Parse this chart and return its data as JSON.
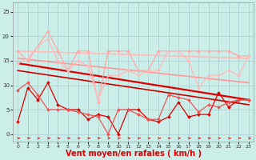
{
  "title": "",
  "xlabel": "Vent moyen/en rafales ( km/h )",
  "xlim": [
    -0.5,
    23.5
  ],
  "ylim": [
    -1.5,
    27
  ],
  "yticks": [
    0,
    5,
    10,
    15,
    20,
    25
  ],
  "xticks": [
    0,
    1,
    2,
    3,
    4,
    5,
    6,
    7,
    8,
    9,
    10,
    11,
    12,
    13,
    14,
    15,
    16,
    17,
    18,
    19,
    20,
    21,
    22,
    23
  ],
  "bg_color": "#cceee8",
  "grid_color": "#aacccc",
  "series": [
    {
      "name": "light_pink_jagged1",
      "color": "#ffaaaa",
      "lw": 0.9,
      "marker": "D",
      "ms": 2.0,
      "x": [
        0,
        1,
        2,
        3,
        4,
        5,
        6,
        7,
        8,
        9,
        10,
        11,
        12,
        13,
        14,
        15,
        16,
        17,
        18,
        19,
        20,
        21,
        22,
        23
      ],
      "y": [
        17,
        15,
        18,
        21,
        17,
        13,
        17,
        17,
        6.5,
        17,
        17,
        17,
        13,
        13,
        17,
        17,
        17,
        17,
        17,
        17,
        17,
        17,
        16,
        16
      ]
    },
    {
      "name": "light_pink_jagged2",
      "color": "#ffbbbb",
      "lw": 0.9,
      "marker": "D",
      "ms": 2.0,
      "x": [
        0,
        1,
        2,
        3,
        4,
        5,
        6,
        7,
        8,
        9,
        10,
        11,
        12,
        13,
        14,
        15,
        16,
        17,
        18,
        19,
        20,
        21,
        22,
        23
      ],
      "y": [
        14.5,
        15.5,
        18,
        19.5,
        15,
        13,
        15,
        14,
        7,
        12,
        12,
        13,
        12,
        13,
        13,
        17,
        17,
        15,
        9.5,
        12,
        12,
        13,
        12,
        16
      ]
    },
    {
      "name": "light_pink_trend1",
      "color": "#ffbbbb",
      "lw": 1.2,
      "marker": null,
      "ms": 0,
      "x": [
        0,
        23
      ],
      "y": [
        17.0,
        15.5
      ]
    },
    {
      "name": "medium_pink_trend",
      "color": "#ff9999",
      "lw": 1.2,
      "marker": null,
      "ms": 0,
      "x": [
        0,
        23
      ],
      "y": [
        15.5,
        10.5
      ]
    },
    {
      "name": "dark_red_trend1",
      "color": "#dd0000",
      "lw": 1.6,
      "marker": null,
      "ms": 0,
      "x": [
        0,
        23
      ],
      "y": [
        14.5,
        7.0
      ]
    },
    {
      "name": "dark_red_trend2",
      "color": "#cc0000",
      "lw": 1.2,
      "marker": null,
      "ms": 0,
      "x": [
        0,
        23
      ],
      "y": [
        13.0,
        6.0
      ]
    },
    {
      "name": "dark_red_jagged",
      "color": "#dd0000",
      "lw": 0.9,
      "marker": "D",
      "ms": 2.0,
      "x": [
        0,
        1,
        2,
        3,
        4,
        5,
        6,
        7,
        8,
        9,
        10,
        11,
        12,
        13,
        14,
        15,
        16,
        17,
        18,
        19,
        20,
        21,
        22,
        23
      ],
      "y": [
        2.5,
        9.5,
        7,
        10.5,
        6,
        5,
        5,
        3,
        4,
        3.5,
        0,
        5,
        5,
        3,
        2.5,
        3.5,
        6.5,
        3.5,
        4,
        4,
        8.5,
        5.5,
        7,
        7
      ]
    },
    {
      "name": "medium_red_jagged",
      "color": "#ee5555",
      "lw": 0.9,
      "marker": "D",
      "ms": 2.0,
      "x": [
        0,
        1,
        2,
        3,
        4,
        5,
        6,
        7,
        8,
        9,
        10,
        11,
        12,
        13,
        14,
        15,
        16,
        17,
        18,
        19,
        20,
        21,
        22,
        23
      ],
      "y": [
        9,
        10.5,
        8,
        5,
        5,
        5,
        4.5,
        4,
        3.5,
        0,
        5,
        5,
        4,
        3,
        3,
        8,
        7.5,
        7,
        4.5,
        6,
        5.5,
        6.5,
        7,
        7
      ]
    }
  ],
  "arrow_color": "#cc2222",
  "xlabel_color": "#dd0000",
  "xlabel_fontsize": 7
}
